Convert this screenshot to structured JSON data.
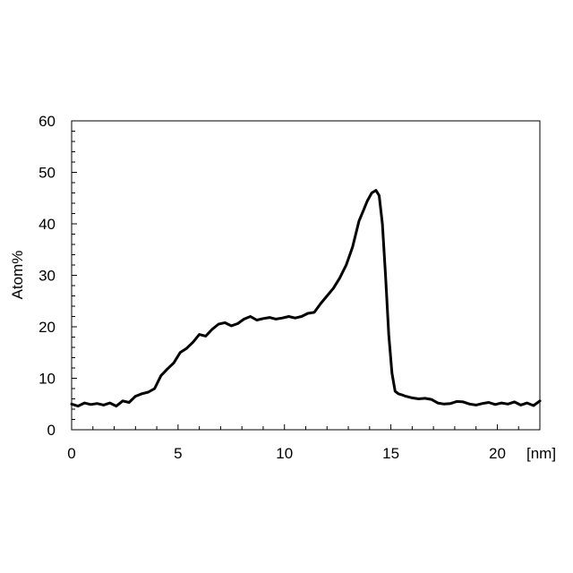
{
  "chart_data": {
    "type": "line",
    "title": "",
    "xlabel": "[nm]",
    "ylabel": "Atom%",
    "xlim": [
      0,
      22
    ],
    "ylim": [
      0,
      60
    ],
    "x_ticks": [
      0,
      5,
      10,
      15,
      20
    ],
    "y_ticks": [
      0,
      10,
      20,
      30,
      40,
      50,
      60
    ],
    "grid": false,
    "legend": "none",
    "line_color": "#000000",
    "series": [
      {
        "x": [
          0,
          0.3,
          0.6,
          0.9,
          1.2,
          1.5,
          1.8,
          2.1,
          2.4,
          2.7,
          3.0,
          3.3,
          3.6,
          3.9,
          4.2,
          4.5,
          4.8,
          5.1,
          5.4,
          5.7,
          6.0,
          6.3,
          6.6,
          6.9,
          7.2,
          7.5,
          7.8,
          8.1,
          8.4,
          8.7,
          9.0,
          9.3,
          9.6,
          9.9,
          10.2,
          10.5,
          10.8,
          11.1,
          11.4,
          11.7,
          12.0,
          12.3,
          12.6,
          12.9,
          13.2,
          13.5,
          13.7,
          13.9,
          14.1,
          14.3,
          14.45,
          14.6,
          14.75,
          14.9,
          15.05,
          15.2,
          15.35,
          15.5,
          15.7,
          16.0,
          16.3,
          16.6,
          16.9,
          17.2,
          17.5,
          17.8,
          18.1,
          18.4,
          18.7,
          19.0,
          19.3,
          19.6,
          19.9,
          20.2,
          20.5,
          20.8,
          21.1,
          21.4,
          21.7,
          22.0
        ],
        "values": [
          5.0,
          4.6,
          5.2,
          4.9,
          5.1,
          4.8,
          5.2,
          4.6,
          5.6,
          5.3,
          6.5,
          7.0,
          7.3,
          8.0,
          10.5,
          11.8,
          13.0,
          15.0,
          15.8,
          17.0,
          18.5,
          18.2,
          19.5,
          20.5,
          20.8,
          20.2,
          20.6,
          21.5,
          22.0,
          21.3,
          21.6,
          21.8,
          21.5,
          21.7,
          22.0,
          21.7,
          22.0,
          22.6,
          22.8,
          24.5,
          26.0,
          27.5,
          29.5,
          32.0,
          35.5,
          40.5,
          42.5,
          44.5,
          46.0,
          46.5,
          45.5,
          40.0,
          30.0,
          18.5,
          11.0,
          7.5,
          7.0,
          6.8,
          6.5,
          6.2,
          6.0,
          6.1,
          5.9,
          5.2,
          5.0,
          5.1,
          5.5,
          5.4,
          5.0,
          4.8,
          5.1,
          5.3,
          4.9,
          5.2,
          5.0,
          5.4,
          4.8,
          5.2,
          4.7,
          5.6
        ]
      }
    ]
  }
}
